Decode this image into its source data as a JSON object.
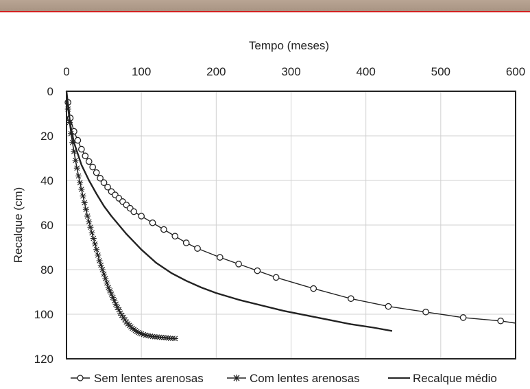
{
  "colors": {
    "header_band": "#ae9a88",
    "header_line": "#d32020",
    "grid": "#d0d0d0",
    "series": "#222222"
  },
  "chart_data": {
    "type": "line",
    "title": "",
    "xlabel": "Tempo (meses)",
    "ylabel": "Recalque (cm)",
    "xlim": [
      0,
      600
    ],
    "ylim": [
      0,
      120
    ],
    "y_inverted": true,
    "x_axis_position": "top",
    "xticks": [
      "0",
      "100",
      "200",
      "300",
      "400",
      "500",
      "600"
    ],
    "yticks": [
      "0",
      "20",
      "40",
      "60",
      "80",
      "100",
      "120"
    ],
    "grid": true,
    "legend_position": "bottom",
    "series": [
      {
        "name": "Sem lentes arenosas",
        "marker": "circle",
        "x": [
          0,
          2,
          5,
          10,
          15,
          20,
          25,
          30,
          35,
          40,
          45,
          50,
          55,
          60,
          65,
          70,
          75,
          80,
          85,
          90,
          100,
          115,
          130,
          145,
          160,
          175,
          205,
          230,
          255,
          280,
          330,
          380,
          430,
          480,
          530,
          580,
          600
        ],
        "y": [
          0,
          5,
          12,
          18,
          22,
          26,
          29,
          31.5,
          34,
          36.5,
          39,
          41,
          43,
          45,
          46.5,
          48,
          49.5,
          51,
          52.5,
          54,
          56,
          59,
          62,
          65,
          68,
          70.5,
          74.5,
          77.5,
          80.5,
          83.5,
          88.5,
          93,
          96.5,
          99,
          101.5,
          103,
          104
        ]
      },
      {
        "name": "Com lentes arenosas",
        "marker": "star",
        "x": [
          0,
          2,
          4,
          6,
          8,
          10,
          12,
          14,
          16,
          18,
          20,
          22,
          24,
          26,
          28,
          30,
          32,
          34,
          36,
          38,
          40,
          42,
          44,
          46,
          48,
          50,
          52,
          54,
          56,
          58,
          60,
          62,
          64,
          66,
          68,
          70,
          72,
          74,
          76,
          78,
          80,
          82,
          84,
          86,
          88,
          90,
          92,
          94,
          96,
          98,
          100,
          103,
          106,
          109,
          112,
          115,
          118,
          121,
          124,
          127,
          130,
          133,
          136,
          139,
          142,
          145
        ],
        "y": [
          0,
          8,
          14,
          19,
          23,
          27,
          31,
          34.5,
          38,
          41,
          44,
          47,
          50,
          53,
          56,
          58.5,
          61,
          63.5,
          66,
          68.5,
          71,
          73.5,
          76,
          78,
          80,
          82,
          84,
          86,
          88,
          89.5,
          91,
          92.5,
          94,
          95.5,
          97,
          98,
          99.5,
          100.5,
          101.5,
          102.5,
          103.5,
          104.3,
          105,
          105.7,
          106.3,
          106.8,
          107.3,
          107.8,
          108.2,
          108.5,
          108.8,
          109.1,
          109.4,
          109.6,
          109.8,
          110,
          110.1,
          110.2,
          110.3,
          110.4,
          110.5,
          110.6,
          110.7,
          110.8,
          110.8,
          110.9
        ]
      },
      {
        "name": "Recalque médio",
        "marker": "none",
        "x": [
          0,
          5,
          10,
          20,
          30,
          40,
          50,
          60,
          70,
          80,
          90,
          100,
          120,
          140,
          160,
          180,
          200,
          230,
          260,
          290,
          320,
          350,
          380,
          410,
          435
        ],
        "y": [
          0,
          15,
          23,
          33,
          40,
          46,
          51.5,
          56,
          60,
          64,
          67.5,
          71,
          77,
          81.5,
          85,
          88,
          90.5,
          93.5,
          96,
          98.5,
          100.5,
          102.5,
          104.5,
          106,
          107.5
        ]
      }
    ]
  }
}
